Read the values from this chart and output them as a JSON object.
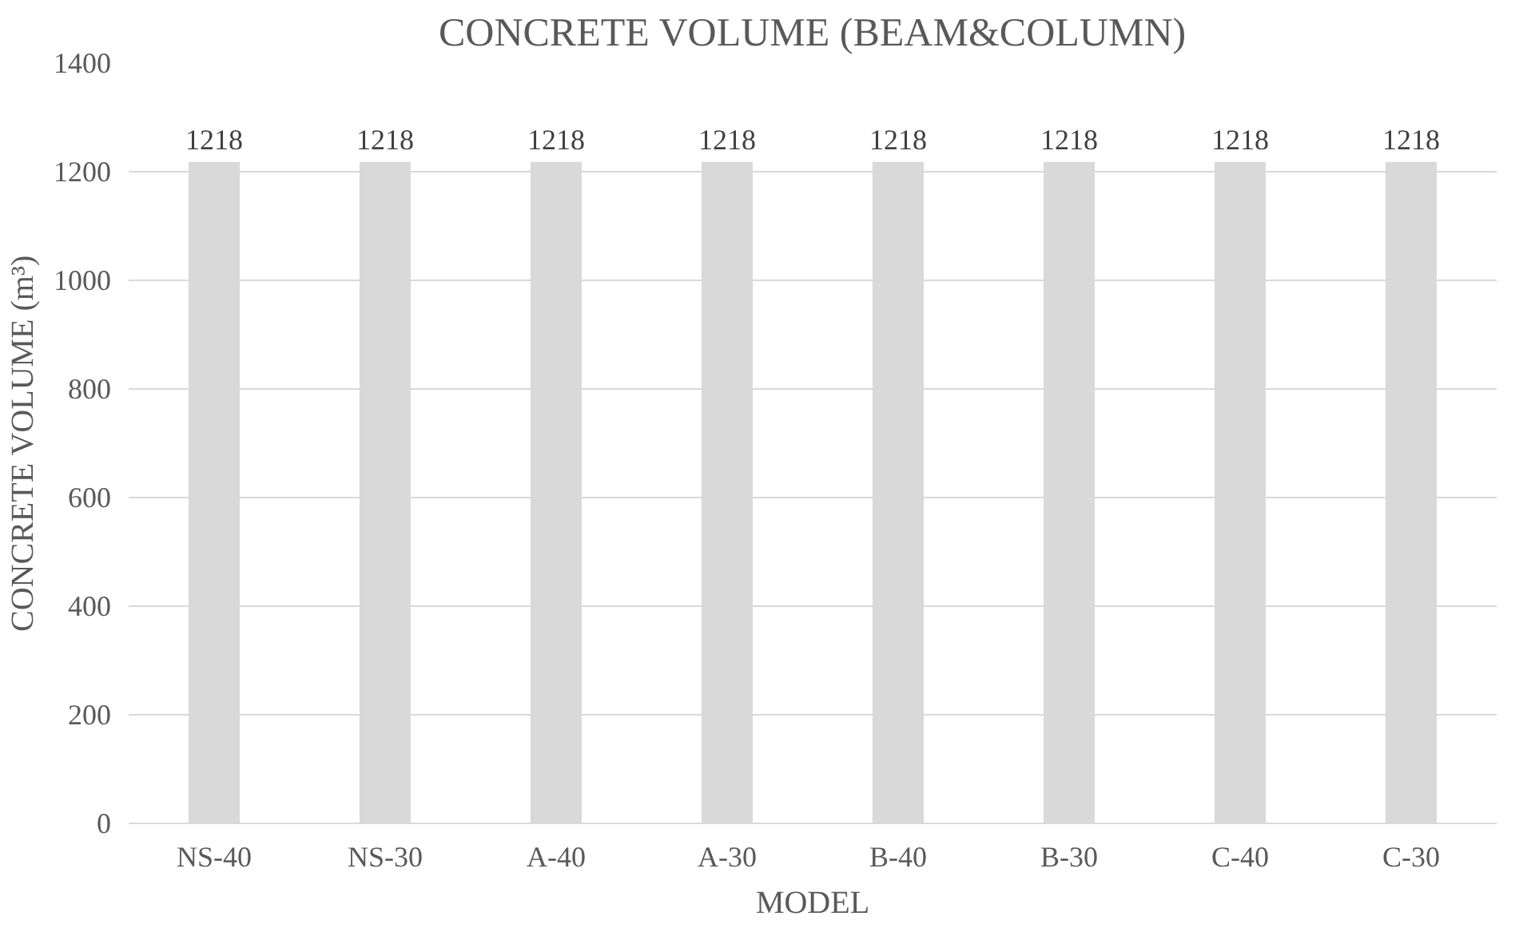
{
  "chart_data": {
    "type": "bar",
    "title": "CONCRETE VOLUME (BEAM&COLUMN)",
    "xlabel": "MODEL",
    "ylabel": "CONCRETE VOLUME (m³)",
    "categories": [
      "NS-40",
      "NS-30",
      "A-40",
      "A-30",
      "B-40",
      "B-30",
      "C-40",
      "C-30"
    ],
    "values": [
      1218,
      1218,
      1218,
      1218,
      1218,
      1218,
      1218,
      1218
    ],
    "color": "#d9d9d9",
    "ylim": [
      0,
      1400
    ],
    "yticks": [
      0,
      200,
      400,
      600,
      800,
      1000,
      1200,
      1400
    ],
    "grid": "y",
    "data_labels": true
  }
}
